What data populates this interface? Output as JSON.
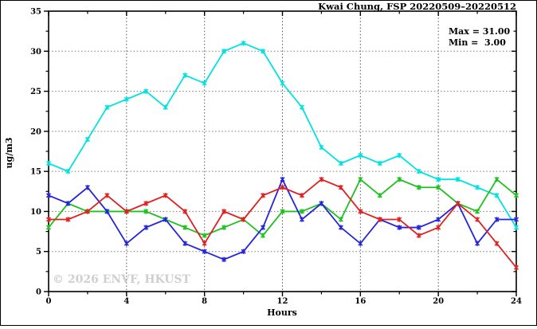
{
  "chart": {
    "title": "Kwai Chung, FSP 20220509–20220512",
    "max_label": "Max = 31.00",
    "min_label": "Min =  3.00",
    "ylabel": "ug/m3",
    "xlabel": "Hours",
    "watermark": "© 2026 ENVF, HKUST"
  },
  "chart_data": {
    "type": "line",
    "title": "Kwai Chung, FSP 20220509–20220512",
    "xlabel": "Hours",
    "ylabel": "ug/m3",
    "xlim": [
      0,
      24
    ],
    "ylim": [
      0,
      35
    ],
    "x_major_ticks": [
      0,
      4,
      8,
      12,
      16,
      20,
      24
    ],
    "x_minor_step": 2,
    "y_major_ticks": [
      0,
      5,
      10,
      15,
      20,
      25,
      30,
      35
    ],
    "y_minor_step": 2.5,
    "grid": true,
    "x": [
      0,
      1,
      2,
      3,
      4,
      5,
      6,
      7,
      8,
      9,
      10,
      11,
      12,
      13,
      14,
      15,
      16,
      17,
      18,
      19,
      20,
      21,
      22,
      23,
      24
    ],
    "series": [
      {
        "name": "station-1-cyan",
        "color": "#00e2e2",
        "values": [
          16,
          15,
          19,
          23,
          24,
          25,
          23,
          27,
          26,
          30,
          31,
          30,
          26,
          23,
          18,
          16,
          17,
          16,
          17,
          15,
          14,
          14,
          13,
          12,
          8
        ]
      },
      {
        "name": "station-2-green",
        "color": "#1fc11f",
        "values": [
          8,
          11,
          10,
          10,
          10,
          10,
          9,
          8,
          7,
          8,
          9,
          7,
          10,
          10,
          11,
          9,
          14,
          12,
          14,
          13,
          13,
          11,
          10,
          14,
          12
        ]
      },
      {
        "name": "station-3-blue",
        "color": "#2424dd",
        "values": [
          12,
          11,
          13,
          10,
          6,
          8,
          9,
          6,
          5,
          4,
          5,
          8,
          14,
          9,
          11,
          8,
          6,
          9,
          8,
          8,
          9,
          11,
          6,
          9,
          9
        ]
      },
      {
        "name": "station-4-red",
        "color": "#e02020",
        "values": [
          9,
          9,
          10,
          12,
          10,
          11,
          12,
          10,
          6,
          10,
          9,
          12,
          13,
          12,
          14,
          13,
          10,
          9,
          9,
          7,
          8,
          11,
          9,
          6,
          3
        ]
      }
    ],
    "annotations": {
      "max": 31.0,
      "min": 3.0
    },
    "legend_position": "none"
  }
}
